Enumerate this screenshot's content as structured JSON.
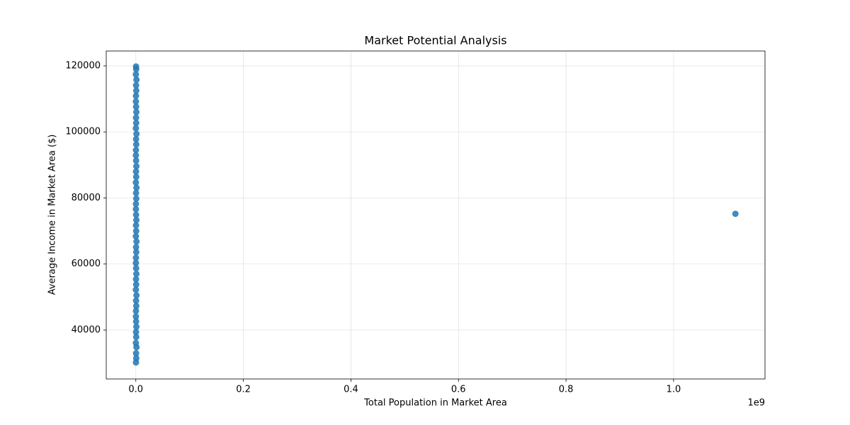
{
  "chart_data": {
    "type": "scatter",
    "title": "Market Potential Analysis",
    "x_label": "Total Population in Market Area",
    "y_label": "Average Income in Market Area ($)",
    "x_offset_label": "1e9",
    "color": "#1f77b4",
    "x": [
      250000,
      810000,
      430000,
      1200000,
      90000,
      670000,
      350000,
      980000,
      520000,
      150000,
      250000,
      810000,
      430000,
      1200000,
      90000,
      670000,
      350000,
      980000,
      520000,
      150000,
      250000,
      810000,
      430000,
      1200000,
      90000,
      670000,
      350000,
      980000,
      520000,
      150000,
      250000,
      810000,
      430000,
      1200000,
      90000,
      670000,
      350000,
      980000,
      520000,
      150000,
      250000,
      810000,
      430000,
      1200000,
      90000,
      670000,
      350000,
      980000,
      520000,
      150000,
      250000,
      810000,
      430000,
      1200000,
      90000,
      670000,
      350000,
      1115000000
    ],
    "values": [
      30200,
      31500,
      33000,
      34800,
      36100,
      37900,
      39400,
      41000,
      42600,
      44100,
      45800,
      47300,
      48900,
      50500,
      52200,
      53800,
      55400,
      57000,
      58700,
      60300,
      61900,
      63600,
      65100,
      66800,
      68400,
      70000,
      71700,
      73300,
      74900,
      76600,
      78200,
      79800,
      81500,
      83100,
      84700,
      86400,
      88000,
      89600,
      91300,
      92900,
      94500,
      96200,
      97800,
      99400,
      101100,
      102700,
      104300,
      106000,
      107600,
      109200,
      110900,
      112500,
      114100,
      115800,
      117400,
      119000,
      119800,
      75200
    ],
    "xlim": [
      -55000000,
      1170000000
    ],
    "ylim": [
      25200,
      124500
    ],
    "xticks": [
      {
        "value": 0,
        "label": "0.0"
      },
      {
        "value": 200000000,
        "label": "0.2"
      },
      {
        "value": 400000000,
        "label": "0.4"
      },
      {
        "value": 600000000,
        "label": "0.6"
      },
      {
        "value": 800000000,
        "label": "0.8"
      },
      {
        "value": 1000000000,
        "label": "1.0"
      }
    ],
    "yticks": [
      40000,
      60000,
      80000,
      100000,
      120000
    ],
    "grid": true
  }
}
